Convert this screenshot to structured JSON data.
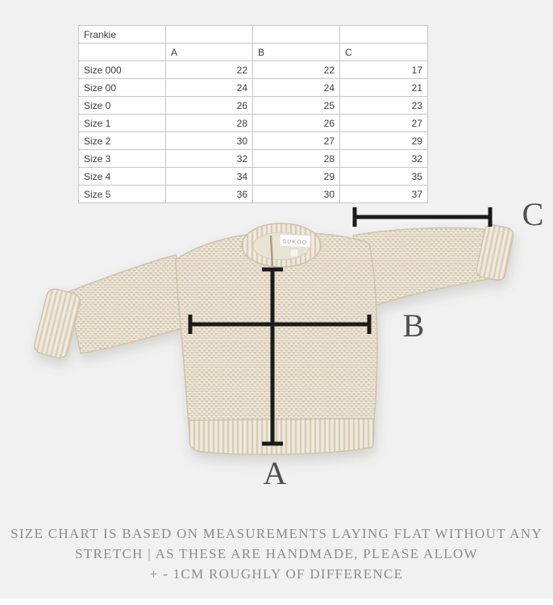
{
  "colors": {
    "background": "#f1f1f1",
    "table_border": "#c6c6c6",
    "table_text": "#3b3b3b",
    "measurement_line": "#1b1b1b",
    "abc_label_text": "#4f4f4f",
    "footer_text": "#8c8c8c",
    "sweater_base": "#e5dccb",
    "sweater_dark": "#d0c3ac",
    "sweater_light": "#f2ecdf"
  },
  "size_table": {
    "product_name": "Frankie",
    "measure_columns": [
      "A",
      "B",
      "C"
    ],
    "rows": [
      {
        "label": "Size 000",
        "values": [
          "22",
          "22",
          "17"
        ]
      },
      {
        "label": "Size 00",
        "values": [
          "24",
          "24",
          "21"
        ]
      },
      {
        "label": "Size 0",
        "values": [
          "26",
          "25",
          "23"
        ]
      },
      {
        "label": "Size 1",
        "values": [
          "28",
          "26",
          "27"
        ]
      },
      {
        "label": "Size 2",
        "values": [
          "30",
          "27",
          "29"
        ]
      },
      {
        "label": "Size 3",
        "values": [
          "32",
          "28",
          "32"
        ]
      },
      {
        "label": "Size 4",
        "values": [
          "34",
          "29",
          "35"
        ]
      },
      {
        "label": "Size 5",
        "values": [
          "36",
          "30",
          "37"
        ]
      }
    ]
  },
  "diagram": {
    "label_a": "A",
    "label_b": "B",
    "label_c": "C",
    "brand_tag": "SUKOO"
  },
  "footer": {
    "line1": "SIZE CHART IS BASED ON MEASUREMENTS LAYING FLAT WITHOUT ANY",
    "line2": "STRETCH | AS THESE ARE HANDMADE, PLEASE ALLOW",
    "line3": "+ - 1CM ROUGHLY OF DIFFERENCE"
  }
}
